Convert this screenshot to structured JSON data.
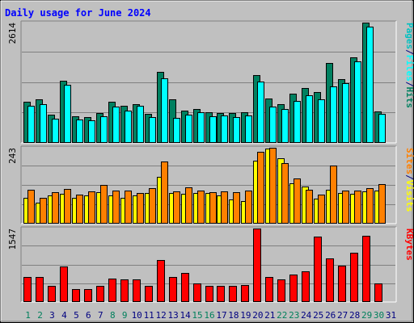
{
  "title": "Daily usage for June 2024",
  "colors": {
    "background": "#c0c0c0",
    "title": "#0000ff",
    "grid": "#808080",
    "pages": "#00c0c0",
    "files": "#00ffff",
    "hits": "#008060",
    "visits": "#ffff00",
    "sites": "#ff8000",
    "kbytes": "#ff0000",
    "weekend_day": "#00805c",
    "weekday": "#000080"
  },
  "chart_data": [
    {
      "type": "bar",
      "panel": "hits-files-pages",
      "max_label": "2614",
      "ylim": [
        0,
        2614
      ],
      "legend": [
        "Pages",
        "/",
        "Files",
        "/",
        "Hits"
      ],
      "categories": [
        "1",
        "2",
        "3",
        "4",
        "5",
        "6",
        "7",
        "8",
        "9",
        "10",
        "11",
        "12",
        "13",
        "14",
        "15",
        "16",
        "17",
        "18",
        "19",
        "20",
        "21",
        "22",
        "23",
        "24",
        "25",
        "26",
        "27",
        "28",
        "29",
        "30",
        "31"
      ],
      "series": [
        {
          "name": "Hits",
          "values": [
            892,
            940,
            620,
            1350,
            580,
            570,
            655,
            890,
            810,
            835,
            640,
            1540,
            950,
            710,
            745,
            660,
            655,
            655,
            660,
            1480,
            960,
            835,
            1070,
            1200,
            1110,
            1740,
            1380,
            1860,
            2614,
            690,
            0
          ]
        },
        {
          "name": "Files",
          "values": [
            800,
            835,
            530,
            1265,
            500,
            485,
            580,
            790,
            710,
            805,
            565,
            1410,
            545,
            615,
            665,
            585,
            595,
            560,
            590,
            1330,
            795,
            730,
            915,
            1040,
            950,
            1220,
            1300,
            1780,
            2530,
            630,
            0
          ]
        }
      ]
    },
    {
      "type": "bar",
      "panel": "visits-sites",
      "max_label": "243",
      "ylim": [
        0,
        243
      ],
      "legend": [
        "Sites",
        "/",
        "Visits"
      ],
      "categories": [
        "1",
        "2",
        "3",
        "4",
        "5",
        "6",
        "7",
        "8",
        "9",
        "10",
        "11",
        "12",
        "13",
        "14",
        "15",
        "16",
        "17",
        "18",
        "19",
        "20",
        "21",
        "22",
        "23",
        "24",
        "25",
        "26",
        "27",
        "28",
        "29",
        "30",
        "31"
      ],
      "series": [
        {
          "name": "Visits",
          "values": [
            82,
            66,
            90,
            95,
            82,
            90,
            102,
            90,
            82,
            91,
            98,
            149,
            98,
            96,
            98,
            98,
            90,
            78,
            73,
            201,
            240,
            210,
            129,
            118,
            80,
            108,
            98,
            95,
            103,
            105,
            0
          ]
        },
        {
          "name": "Sites",
          "values": [
            108,
            84,
            100,
            110,
            92,
            103,
            123,
            106,
            107,
            98,
            115,
            200,
            104,
            117,
            107,
            100,
            103,
            101,
            106,
            231,
            243,
            194,
            146,
            108,
            92,
            187,
            106,
            107,
            114,
            127,
            0
          ]
        }
      ]
    },
    {
      "type": "bar",
      "panel": "kbytes",
      "max_label": "1547",
      "ylim": [
        0,
        1547
      ],
      "legend": [
        "KBytes"
      ],
      "categories": [
        "1",
        "2",
        "3",
        "4",
        "5",
        "6",
        "7",
        "8",
        "9",
        "10",
        "11",
        "12",
        "13",
        "14",
        "15",
        "16",
        "17",
        "18",
        "19",
        "20",
        "21",
        "22",
        "23",
        "24",
        "25",
        "26",
        "27",
        "28",
        "29",
        "30",
        "31"
      ],
      "series": [
        {
          "name": "KBytes",
          "values": [
            520,
            525,
            340,
            740,
            280,
            280,
            335,
            495,
            480,
            480,
            335,
            880,
            535,
            615,
            390,
            340,
            335,
            340,
            355,
            1547,
            525,
            470,
            570,
            650,
            1380,
            920,
            760,
            1035,
            1390,
            390,
            0
          ]
        }
      ]
    }
  ],
  "weekend_days": [
    "1",
    "2",
    "8",
    "9",
    "15",
    "16",
    "22",
    "23",
    "29",
    "30"
  ]
}
